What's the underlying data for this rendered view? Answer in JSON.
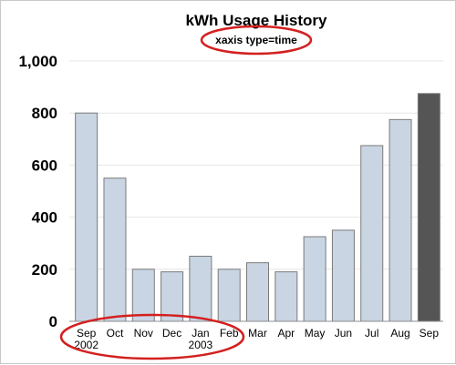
{
  "chart_data": {
    "type": "bar",
    "title": "kWh Usage History",
    "subtitle": "xaxis type=time",
    "categories": [
      {
        "month": "Sep",
        "year": "2002"
      },
      {
        "month": "Oct",
        "year": ""
      },
      {
        "month": "Nov",
        "year": ""
      },
      {
        "month": "Dec",
        "year": ""
      },
      {
        "month": "Jan",
        "year": "2003"
      },
      {
        "month": "Feb",
        "year": ""
      },
      {
        "month": "Mar",
        "year": ""
      },
      {
        "month": "Apr",
        "year": ""
      },
      {
        "month": "May",
        "year": ""
      },
      {
        "month": "Jun",
        "year": ""
      },
      {
        "month": "Jul",
        "year": ""
      },
      {
        "month": "Aug",
        "year": ""
      },
      {
        "month": "Sep",
        "year": ""
      }
    ],
    "values": [
      800,
      550,
      200,
      190,
      250,
      200,
      225,
      190,
      325,
      350,
      675,
      775,
      875
    ],
    "highlight_index": 12,
    "ylim": [
      0,
      1000
    ],
    "yticks": [
      0,
      200,
      400,
      600,
      800,
      1000
    ],
    "ytick_labels": [
      "0",
      "200",
      "400",
      "600",
      "800",
      "1,000"
    ],
    "grid": true,
    "xlabel": "",
    "ylabel": "",
    "colors": {
      "bar": "#c9d5e3",
      "highlight_bar": "#555555",
      "annotation_ellipse": "#d42020"
    },
    "annotations": [
      "ellipse around subtitle",
      "ellipse around year labels"
    ]
  }
}
